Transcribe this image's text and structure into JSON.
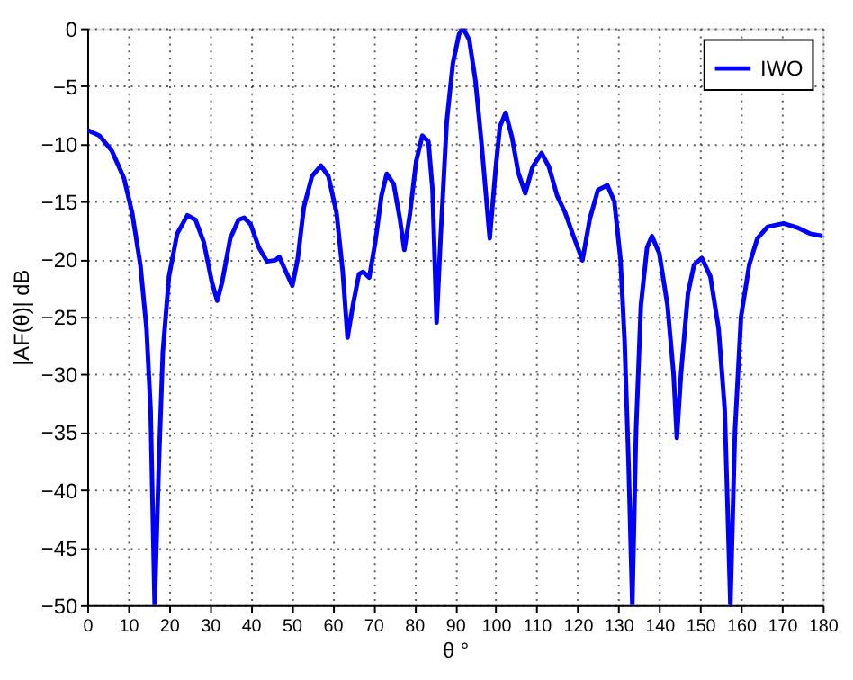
{
  "chart_data": {
    "type": "line",
    "xlabel": "θ °",
    "ylabel": "|AF(θ)| dB",
    "xlim": [
      0,
      180
    ],
    "xticks": [
      0,
      10,
      20,
      30,
      40,
      50,
      60,
      70,
      80,
      90,
      100,
      110,
      120,
      130,
      140,
      150,
      160,
      170,
      180
    ],
    "ylim": [
      -50,
      0
    ],
    "yticks": [
      -50,
      -45,
      -40,
      -35,
      -30,
      -25,
      -20,
      -15,
      -10,
      -5,
      0
    ],
    "grid": true,
    "legend": "top right",
    "marker": "none",
    "line_style": "solid",
    "series": [
      {
        "name": "IWO",
        "color": "#0000ff",
        "x": [
          0,
          3,
          6,
          9,
          11,
          13,
          14.5,
          15.5,
          16.5,
          17.5,
          18.5,
          20,
          22,
          24.5,
          26.5,
          28.5,
          30.5,
          31.8,
          33,
          35,
          37,
          38.4,
          40,
          42,
          44,
          46,
          47,
          48.5,
          50.2,
          51.5,
          53,
          55,
          57.2,
          59,
          61,
          62.5,
          63.7,
          65,
          66.5,
          67.5,
          69,
          70.5,
          72,
          73.3,
          75,
          76.5,
          77.6,
          79,
          80.5,
          82,
          83.5,
          84.5,
          85.5,
          86.5,
          88,
          89.5,
          91,
          92,
          93.5,
          95,
          96.5,
          98.5,
          100,
          101,
          102.4,
          104,
          105.5,
          107.2,
          109,
          111.2,
          113,
          115,
          117,
          119,
          121.2,
          123,
          125,
          127.3,
          129,
          130.5,
          131.5,
          132.5,
          133.4,
          134.3,
          135.5,
          137,
          138.2,
          140,
          142,
          143.5,
          144.3,
          145.3,
          147,
          148.5,
          150.4,
          152.5,
          154.5,
          156,
          157.4,
          158.5,
          160,
          162,
          164,
          166.5,
          170.4,
          174,
          177,
          180
        ],
        "values": [
          -8.8,
          -9.3,
          -10.6,
          -13,
          -16,
          -20.5,
          -26,
          -33,
          -50,
          -38,
          -28,
          -21.5,
          -17.8,
          -16.2,
          -16.6,
          -18.5,
          -22,
          -23.6,
          -22,
          -18.2,
          -16.6,
          -16.4,
          -17,
          -19,
          -20.2,
          -20.1,
          -19.8,
          -21,
          -22.3,
          -20,
          -15.5,
          -12.8,
          -11.9,
          -12.8,
          -16,
          -21,
          -26.8,
          -24,
          -21.3,
          -21.1,
          -21.6,
          -18.5,
          -14.5,
          -12.6,
          -13.5,
          -16.5,
          -19.2,
          -16,
          -11.5,
          -9.3,
          -9.8,
          -14,
          -25.5,
          -18,
          -8,
          -3,
          -0.5,
          0,
          -1,
          -4.5,
          -10,
          -18.2,
          -12,
          -8.5,
          -7.3,
          -9.5,
          -12.5,
          -14.3,
          -12,
          -10.8,
          -12,
          -14.5,
          -16,
          -18,
          -20.1,
          -16.5,
          -14,
          -13.6,
          -15,
          -20,
          -27,
          -38,
          -50,
          -35,
          -24,
          -19,
          -18,
          -19.5,
          -24,
          -30,
          -35.5,
          -30,
          -23,
          -20.5,
          -19.9,
          -21.5,
          -26,
          -33,
          -50,
          -35,
          -25,
          -20.5,
          -18.2,
          -17.2,
          -16.9,
          -17.3,
          -17.8,
          -18
        ]
      }
    ]
  }
}
